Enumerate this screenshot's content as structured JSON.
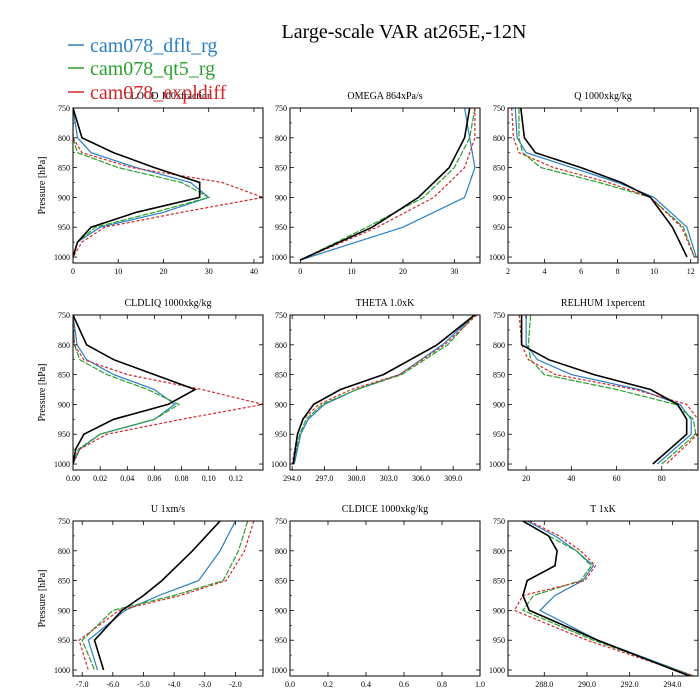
{
  "figure": {
    "title": "Large-scale VAR at265E,-12N"
  },
  "legend": {
    "placement": "top-left",
    "entries": [
      {
        "name": "cam078_dflt_rg",
        "color": "#2a7fc4"
      },
      {
        "name": "cam078_qt5_rg",
        "color": "#2ca02c"
      },
      {
        "name": "cam078_expldiff",
        "color": "#d62728"
      }
    ],
    "obs_color": "#000000"
  },
  "chart_data": [
    {
      "type": "line",
      "title": "CLOUD 100xfraction",
      "ylabel": "Pressure [hPa]",
      "xlim": [
        0,
        42
      ],
      "ylim": [
        1010,
        750
      ],
      "xticks": [
        0,
        10,
        20,
        30,
        40
      ],
      "xtick_labels": [
        "0",
        "10",
        "20",
        "30",
        "40"
      ],
      "yticks": [
        750,
        800,
        850,
        900,
        950,
        1000
      ],
      "ytick_labels": [
        "750",
        "800",
        "850",
        "900",
        "950",
        "1000"
      ],
      "y": [
        750,
        800,
        825,
        850,
        875,
        900,
        925,
        950,
        975,
        1000
      ],
      "series": [
        {
          "name": "cam078_dflt_rg",
          "values": [
            0,
            1,
            4,
            14,
            26,
            30,
            20,
            6,
            1,
            0
          ]
        },
        {
          "name": "cam078_qt5_rg",
          "values": [
            0,
            0,
            1,
            10,
            24,
            30,
            18,
            5,
            1,
            0
          ]
        },
        {
          "name": "cam078_expldiff",
          "values": [
            0,
            0,
            2,
            13,
            33,
            42,
            24,
            7,
            2,
            0
          ]
        },
        {
          "name": "obs",
          "values": [
            0,
            2,
            9,
            18,
            28,
            28,
            14,
            4,
            1,
            0
          ]
        }
      ]
    },
    {
      "type": "line",
      "title": "OMEGA 864xPa/s",
      "ylabel": "",
      "xlim": [
        -2,
        35
      ],
      "ylim": [
        1010,
        750
      ],
      "xticks": [
        0,
        10,
        20,
        30
      ],
      "xtick_labels": [
        "0",
        "10",
        "20",
        "30"
      ],
      "yticks": [
        750,
        800,
        850,
        900,
        950,
        1000
      ],
      "ytick_labels": [
        "750",
        "800",
        "850",
        "900",
        "950",
        "1000"
      ],
      "y": [
        750,
        800,
        850,
        900,
        950,
        1005
      ],
      "series": [
        {
          "name": "cam078_dflt_rg",
          "values": [
            32,
            33,
            34,
            32,
            20,
            0
          ]
        },
        {
          "name": "cam078_qt5_rg",
          "values": [
            34,
            33,
            30,
            24,
            13,
            0
          ]
        },
        {
          "name": "cam078_expldiff",
          "values": [
            34,
            34,
            32,
            26,
            15,
            0
          ]
        },
        {
          "name": "obs",
          "values": [
            33,
            32,
            29,
            23,
            14,
            0
          ]
        }
      ]
    },
    {
      "type": "line",
      "title": "Q 1000xkg/kg",
      "ylabel": "",
      "xlim": [
        2,
        12.4
      ],
      "ylim": [
        1010,
        750
      ],
      "xticks": [
        2,
        4,
        6,
        8,
        10,
        12
      ],
      "xtick_labels": [
        "2",
        "4",
        "6",
        "8",
        "10",
        "12"
      ],
      "yticks": [
        750,
        800,
        850,
        900,
        950,
        1000
      ],
      "ytick_labels": [
        "750",
        "800",
        "850",
        "900",
        "950",
        "1000"
      ],
      "y": [
        750,
        800,
        825,
        850,
        875,
        900,
        950,
        1000
      ],
      "series": [
        {
          "name": "cam078_dflt_rg",
          "values": [
            2.4,
            2.5,
            3.0,
            5.5,
            8.0,
            10.0,
            11.8,
            12.3
          ]
        },
        {
          "name": "cam078_qt5_rg",
          "values": [
            2.6,
            2.6,
            2.8,
            3.8,
            7.0,
            9.8,
            11.6,
            12.2
          ]
        },
        {
          "name": "cam078_expldiff",
          "values": [
            2.2,
            2.3,
            2.6,
            4.5,
            7.5,
            9.8,
            11.5,
            12.2
          ]
        },
        {
          "name": "obs",
          "values": [
            2.7,
            2.9,
            3.5,
            6.0,
            8.2,
            9.8,
            11.0,
            11.8
          ]
        }
      ]
    },
    {
      "type": "line",
      "title": "CLDLIQ 1000xkg/kg",
      "ylabel": "Pressure [hPa]",
      "xlim": [
        0,
        0.14
      ],
      "ylim": [
        1010,
        750
      ],
      "xticks": [
        0,
        0.02,
        0.04,
        0.06,
        0.08,
        0.1,
        0.12
      ],
      "xtick_labels": [
        "0.00",
        "0.02",
        "0.04",
        "0.06",
        "0.08",
        "0.10",
        "0.12"
      ],
      "yticks": [
        750,
        800,
        850,
        900,
        950,
        1000
      ],
      "ytick_labels": [
        "750",
        "800",
        "850",
        "900",
        "950",
        "1000"
      ],
      "y": [
        750,
        800,
        825,
        850,
        875,
        900,
        925,
        950,
        975,
        1000
      ],
      "series": [
        {
          "name": "cam078_dflt_rg",
          "values": [
            0,
            0.003,
            0.01,
            0.03,
            0.06,
            0.075,
            0.06,
            0.02,
            0.005,
            0
          ]
        },
        {
          "name": "cam078_qt5_rg",
          "values": [
            0,
            0.001,
            0.005,
            0.025,
            0.055,
            0.078,
            0.06,
            0.02,
            0.004,
            0
          ]
        },
        {
          "name": "cam078_expldiff",
          "values": [
            0,
            0.001,
            0.008,
            0.04,
            0.095,
            0.14,
            0.08,
            0.025,
            0.005,
            0
          ]
        },
        {
          "name": "obs",
          "values": [
            0,
            0.01,
            0.03,
            0.06,
            0.09,
            0.07,
            0.03,
            0.008,
            0.002,
            0
          ]
        }
      ]
    },
    {
      "type": "line",
      "title": "THETA 1.0xK",
      "ylabel": "",
      "xlim": [
        293.8,
        311.5
      ],
      "ylim": [
        1010,
        750
      ],
      "xticks": [
        294.0,
        297.0,
        300.0,
        303.0,
        306.0,
        309.0
      ],
      "xtick_labels": [
        "294.0",
        "297.0",
        "300.0",
        "303.0",
        "306.0",
        "309.0"
      ],
      "yticks": [
        750,
        800,
        850,
        900,
        950,
        1000
      ],
      "ytick_labels": [
        "750",
        "800",
        "850",
        "900",
        "950",
        "1000"
      ],
      "y": [
        750,
        800,
        850,
        875,
        900,
        925,
        950,
        1000
      ],
      "series": [
        {
          "name": "cam078_dflt_rg",
          "values": [
            311,
            308,
            304,
            300,
            297,
            295.5,
            294.8,
            294.2
          ]
        },
        {
          "name": "cam078_qt5_rg",
          "values": [
            311,
            308.5,
            304.2,
            300,
            296.8,
            295.3,
            294.7,
            294.1
          ]
        },
        {
          "name": "cam078_expldiff",
          "values": [
            311.2,
            308.2,
            304,
            299.5,
            296.5,
            295,
            294.5,
            294.0
          ]
        },
        {
          "name": "obs",
          "values": [
            311,
            307.5,
            302.5,
            298.5,
            296,
            295,
            294.5,
            294.1
          ]
        }
      ]
    },
    {
      "type": "line",
      "title": "RELHUM 1xpercent",
      "ylabel": "",
      "xlim": [
        12,
        96
      ],
      "ylim": [
        1010,
        750
      ],
      "xticks": [
        20,
        40,
        60,
        80
      ],
      "xtick_labels": [
        "20",
        "40",
        "60",
        "80"
      ],
      "yticks": [
        750,
        800,
        850,
        900,
        950,
        1000
      ],
      "ytick_labels": [
        "750",
        "800",
        "850",
        "900",
        "950",
        "1000"
      ],
      "y": [
        750,
        800,
        825,
        850,
        875,
        900,
        925,
        950,
        1000
      ],
      "series": [
        {
          "name": "cam078_dflt_rg",
          "values": [
            20,
            20,
            25,
            40,
            70,
            88,
            93,
            93,
            78
          ]
        },
        {
          "name": "cam078_qt5_rg",
          "values": [
            22,
            21,
            22,
            28,
            60,
            86,
            94,
            95,
            80
          ]
        },
        {
          "name": "cam078_expldiff",
          "values": [
            17,
            18,
            21,
            33,
            68,
            91,
            96,
            96,
            82
          ]
        },
        {
          "name": "obs",
          "values": [
            18,
            18,
            30,
            50,
            75,
            87,
            91,
            91,
            76
          ]
        }
      ]
    },
    {
      "type": "line",
      "title": "U 1xm/s",
      "ylabel": "Pressure [hPa]",
      "xlim": [
        -7.3,
        -1.1
      ],
      "ylim": [
        1010,
        750
      ],
      "xticks": [
        -7,
        -6,
        -5,
        -4,
        -3,
        -2
      ],
      "xtick_labels": [
        "-7.0",
        "-6.0",
        "-5.0",
        "-4.0",
        "-3.0",
        "-2.0"
      ],
      "yticks": [
        750,
        800,
        850,
        900,
        950,
        1000
      ],
      "ytick_labels": [
        "750",
        "800",
        "850",
        "900",
        "950",
        "1000"
      ],
      "y": [
        750,
        800,
        850,
        875,
        900,
        950,
        1000
      ],
      "series": [
        {
          "name": "cam078_dflt_rg",
          "values": [
            -2.0,
            -2.5,
            -3.2,
            -4.5,
            -5.6,
            -6.8,
            -6.5
          ]
        },
        {
          "name": "cam078_qt5_rg",
          "values": [
            -1.6,
            -1.9,
            -2.4,
            -4.0,
            -6.0,
            -7.0,
            -6.6
          ]
        },
        {
          "name": "cam078_expldiff",
          "values": [
            -1.4,
            -1.7,
            -2.3,
            -3.8,
            -5.8,
            -7.1,
            -6.8
          ]
        },
        {
          "name": "obs",
          "values": [
            -2.5,
            -3.4,
            -4.4,
            -5.0,
            -5.7,
            -6.6,
            -6.3
          ]
        }
      ]
    },
    {
      "type": "line",
      "title": "CLDICE 1000xkg/kg",
      "ylabel": "",
      "xlim": [
        0,
        1
      ],
      "ylim": [
        1010,
        750
      ],
      "xticks": [
        0,
        0.2,
        0.4,
        0.6,
        0.8,
        1.0
      ],
      "xtick_labels": [
        "0.0",
        "0.2",
        "0.4",
        "0.6",
        "0.8",
        "1.0"
      ],
      "yticks": [
        750,
        800,
        850,
        900,
        950,
        1000
      ],
      "ytick_labels": [
        "750",
        "800",
        "850",
        "900",
        "950",
        "1000"
      ],
      "y": [],
      "series": []
    },
    {
      "type": "line",
      "title": "T 1xK",
      "ylabel": "",
      "xlim": [
        286.3,
        295.2
      ],
      "ylim": [
        1010,
        750
      ],
      "xticks": [
        288,
        290,
        292,
        294
      ],
      "xtick_labels": [
        "288.0",
        "290.0",
        "292.0",
        "294.0"
      ],
      "yticks": [
        750,
        800,
        850,
        900,
        950,
        1000
      ],
      "ytick_labels": [
        "750",
        "800",
        "850",
        "900",
        "950",
        "1000"
      ],
      "y": [
        750,
        775,
        800,
        825,
        850,
        875,
        900,
        950,
        1010
      ],
      "series": [
        {
          "name": "cam078_dflt_rg",
          "values": [
            287.2,
            288.5,
            289.5,
            290.3,
            289.8,
            288.5,
            287.8,
            290.5,
            295.0
          ]
        },
        {
          "name": "cam078_qt5_rg",
          "values": [
            287.0,
            288.2,
            289.5,
            290.2,
            289.7,
            287.5,
            287.0,
            290.3,
            295.0
          ]
        },
        {
          "name": "cam078_expldiff",
          "values": [
            287.3,
            288.7,
            289.7,
            290.4,
            289.9,
            287.0,
            286.6,
            290.0,
            295.0
          ]
        },
        {
          "name": "obs",
          "values": [
            287.0,
            288.2,
            288.6,
            288.5,
            287.2,
            287.0,
            287.3,
            290.5,
            294.8
          ]
        }
      ]
    }
  ]
}
